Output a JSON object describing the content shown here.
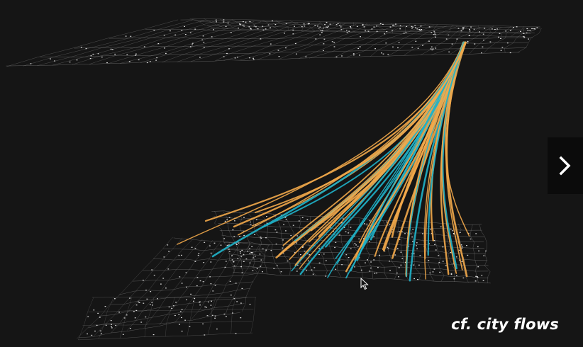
{
  "caption": "cf. city flows",
  "colors": {
    "background": "#151515",
    "flow_a": "#f2a94a",
    "flow_b": "#1fb3c9",
    "network": "#9a9a9a",
    "node": "#ffffff",
    "button_bg": "#0b0b0b",
    "chevron": "#ffffff"
  },
  "icons": {
    "next": "chevron-right-icon",
    "cursor": "mouse-pointer-icon"
  }
}
